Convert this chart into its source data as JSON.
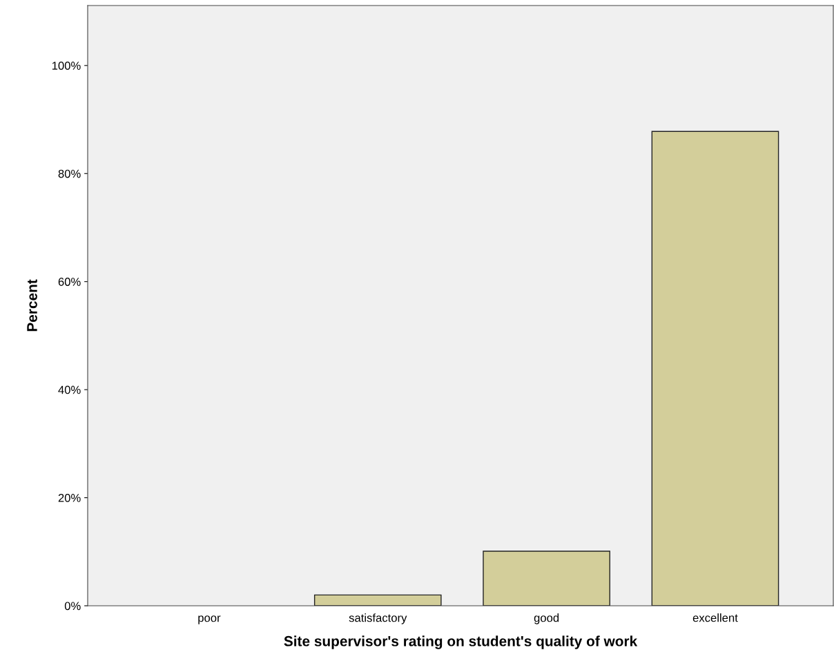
{
  "chart_data": {
    "type": "bar",
    "xlabel": "Site supervisor's rating on student's quality of work",
    "ylabel": "Percent",
    "categories": [
      "poor",
      "satisfactory",
      "good",
      "excellent"
    ],
    "values": [
      0,
      2.0,
      10.1,
      87.8
    ],
    "color": "#d3ce9a",
    "ylim": [
      0,
      111.1
    ],
    "yticks": [
      {
        "value": 0,
        "label": "0%"
      },
      {
        "value": 20,
        "label": "20%"
      },
      {
        "value": 40,
        "label": "40%"
      },
      {
        "value": 60,
        "label": "60%"
      },
      {
        "value": 80,
        "label": "80%"
      },
      {
        "value": 100,
        "label": "100%"
      }
    ],
    "grid": false
  }
}
